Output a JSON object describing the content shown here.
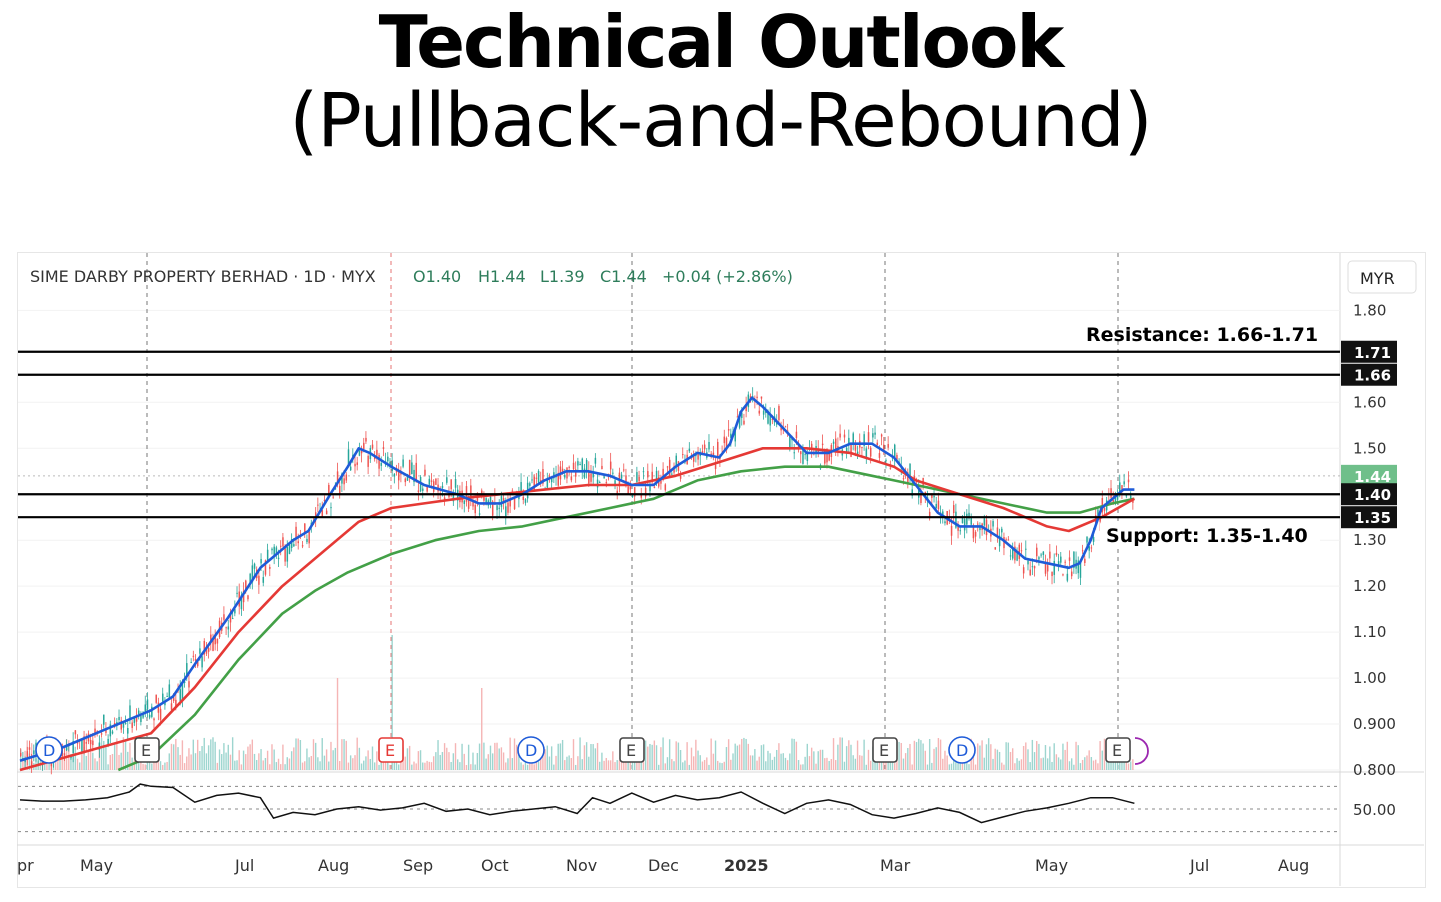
{
  "title": "Technical Outlook",
  "subtitle": "(Pullback-and-Rebound)",
  "chart_data": {
    "type": "candlestick",
    "header": {
      "symbol": "SIME DARBY PROPERTY BERHAD",
      "interval": "1D",
      "exchange": "MYX",
      "open": "O1.40",
      "high": "H1.44",
      "low": "L1.39",
      "close": "C1.44",
      "change": "+0.04 (+2.86%)"
    },
    "currency": "MYR",
    "ylim": [
      0.8,
      1.84
    ],
    "y_ticks": [
      "1.80",
      "1.60",
      "1.50",
      "1.30",
      "1.20",
      "1.10",
      "1.00",
      "0.900",
      "0.800"
    ],
    "price_label": "1.44",
    "level_tags": [
      "1.71",
      "1.66",
      "1.40",
      "1.35"
    ],
    "levels": [
      1.71,
      1.66,
      1.4,
      1.35
    ],
    "annotations": {
      "resistance": "Resistance: 1.66-1.71",
      "support": "Support: 1.35-1.40"
    },
    "x_labels": [
      "pr",
      "May",
      "Jul",
      "Aug",
      "Sep",
      "Oct",
      "Nov",
      "Dec",
      "2025",
      "Mar",
      "May",
      "Jul",
      "Aug"
    ],
    "events": [
      "D",
      "E",
      "E",
      "D",
      "E",
      "E",
      "D",
      "E"
    ],
    "ma_fast": [
      [
        0,
        0.82
      ],
      [
        20,
        0.85
      ],
      [
        40,
        0.89
      ],
      [
        60,
        0.93
      ],
      [
        70,
        0.96
      ],
      [
        80,
        1.03
      ],
      [
        95,
        1.13
      ],
      [
        110,
        1.24
      ],
      [
        125,
        1.3
      ],
      [
        132,
        1.32
      ],
      [
        142,
        1.4
      ],
      [
        150,
        1.46
      ],
      [
        155,
        1.5
      ],
      [
        160,
        1.49
      ],
      [
        170,
        1.46
      ],
      [
        185,
        1.42
      ],
      [
        200,
        1.4
      ],
      [
        210,
        1.38
      ],
      [
        220,
        1.38
      ],
      [
        230,
        1.4
      ],
      [
        240,
        1.43
      ],
      [
        250,
        1.45
      ],
      [
        260,
        1.45
      ],
      [
        270,
        1.44
      ],
      [
        280,
        1.42
      ],
      [
        290,
        1.42
      ],
      [
        300,
        1.46
      ],
      [
        310,
        1.49
      ],
      [
        320,
        1.48
      ],
      [
        325,
        1.51
      ],
      [
        330,
        1.58
      ],
      [
        335,
        1.61
      ],
      [
        340,
        1.59
      ],
      [
        350,
        1.54
      ],
      [
        360,
        1.49
      ],
      [
        370,
        1.49
      ],
      [
        380,
        1.51
      ],
      [
        390,
        1.51
      ],
      [
        400,
        1.48
      ],
      [
        410,
        1.42
      ],
      [
        420,
        1.36
      ],
      [
        430,
        1.33
      ],
      [
        440,
        1.33
      ],
      [
        450,
        1.3
      ],
      [
        460,
        1.26
      ],
      [
        470,
        1.25
      ],
      [
        480,
        1.24
      ],
      [
        485,
        1.25
      ],
      [
        490,
        1.3
      ],
      [
        495,
        1.37
      ],
      [
        505,
        1.41
      ],
      [
        510,
        1.41
      ]
    ],
    "ma_mid": [
      [
        0,
        0.8
      ],
      [
        30,
        0.84
      ],
      [
        60,
        0.88
      ],
      [
        80,
        0.98
      ],
      [
        100,
        1.1
      ],
      [
        120,
        1.2
      ],
      [
        140,
        1.28
      ],
      [
        155,
        1.34
      ],
      [
        170,
        1.37
      ],
      [
        185,
        1.38
      ],
      [
        200,
        1.39
      ],
      [
        220,
        1.4
      ],
      [
        240,
        1.41
      ],
      [
        260,
        1.42
      ],
      [
        280,
        1.42
      ],
      [
        300,
        1.44
      ],
      [
        320,
        1.47
      ],
      [
        340,
        1.5
      ],
      [
        360,
        1.5
      ],
      [
        380,
        1.49
      ],
      [
        400,
        1.46
      ],
      [
        410,
        1.43
      ],
      [
        430,
        1.4
      ],
      [
        450,
        1.37
      ],
      [
        470,
        1.33
      ],
      [
        480,
        1.32
      ],
      [
        495,
        1.35
      ],
      [
        510,
        1.39
      ]
    ],
    "ma_slow": [
      [
        45,
        0.8
      ],
      [
        60,
        0.83
      ],
      [
        80,
        0.92
      ],
      [
        100,
        1.04
      ],
      [
        120,
        1.14
      ],
      [
        135,
        1.19
      ],
      [
        150,
        1.23
      ],
      [
        170,
        1.27
      ],
      [
        190,
        1.3
      ],
      [
        210,
        1.32
      ],
      [
        230,
        1.33
      ],
      [
        250,
        1.35
      ],
      [
        270,
        1.37
      ],
      [
        290,
        1.39
      ],
      [
        310,
        1.43
      ],
      [
        330,
        1.45
      ],
      [
        350,
        1.46
      ],
      [
        370,
        1.46
      ],
      [
        390,
        1.44
      ],
      [
        410,
        1.42
      ],
      [
        430,
        1.4
      ],
      [
        450,
        1.38
      ],
      [
        470,
        1.36
      ],
      [
        485,
        1.36
      ],
      [
        500,
        1.38
      ],
      [
        510,
        1.39
      ]
    ],
    "volume_spikes": [
      [
        128,
        30
      ],
      [
        145,
        92
      ],
      [
        170,
        135
      ],
      [
        211,
        82
      ]
    ],
    "rsi": {
      "label": "50.00",
      "values": [
        [
          0,
          58
        ],
        [
          10,
          57
        ],
        [
          20,
          57
        ],
        [
          30,
          58
        ],
        [
          40,
          60
        ],
        [
          50,
          65
        ],
        [
          55,
          72
        ],
        [
          60,
          70
        ],
        [
          70,
          69
        ],
        [
          80,
          56
        ],
        [
          90,
          62
        ],
        [
          100,
          64
        ],
        [
          110,
          60
        ],
        [
          116,
          42
        ],
        [
          125,
          47
        ],
        [
          135,
          45
        ],
        [
          145,
          50
        ],
        [
          155,
          52
        ],
        [
          165,
          49
        ],
        [
          175,
          51
        ],
        [
          185,
          55
        ],
        [
          195,
          48
        ],
        [
          205,
          50
        ],
        [
          215,
          45
        ],
        [
          225,
          48
        ],
        [
          235,
          50
        ],
        [
          245,
          52
        ],
        [
          255,
          46
        ],
        [
          262,
          60
        ],
        [
          270,
          55
        ],
        [
          280,
          64
        ],
        [
          290,
          56
        ],
        [
          300,
          62
        ],
        [
          310,
          58
        ],
        [
          320,
          60
        ],
        [
          330,
          65
        ],
        [
          340,
          55
        ],
        [
          350,
          46
        ],
        [
          360,
          55
        ],
        [
          370,
          58
        ],
        [
          380,
          54
        ],
        [
          390,
          45
        ],
        [
          400,
          42
        ],
        [
          410,
          46
        ],
        [
          420,
          51
        ],
        [
          430,
          47
        ],
        [
          440,
          38
        ],
        [
          450,
          43
        ],
        [
          460,
          48
        ],
        [
          470,
          51
        ],
        [
          480,
          55
        ],
        [
          490,
          60
        ],
        [
          500,
          60
        ],
        [
          510,
          55
        ]
      ]
    }
  }
}
